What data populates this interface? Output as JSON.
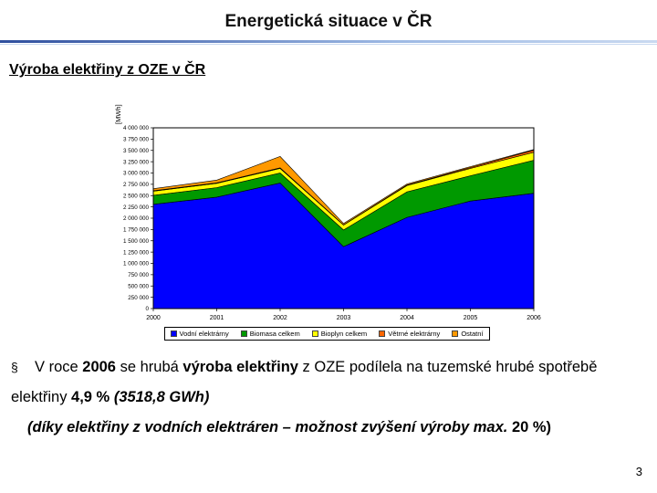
{
  "slide": {
    "title": "Energetická situace v ČR",
    "subtitle": "Výroba elektřiny z OZE v ČR",
    "page_number": "3",
    "accent_color": "#2F4F9E"
  },
  "chart_data": {
    "type": "area",
    "stacked": true,
    "title": "",
    "xlabel": "",
    "ylabel": "[MWh]",
    "categories": [
      "2000",
      "2001",
      "2002",
      "2003",
      "2004",
      "2005",
      "2006"
    ],
    "ylim": [
      0,
      4000000
    ],
    "ytick_step": 250000,
    "grid": false,
    "legend_position": "bottom",
    "plot_border_color": "#000000",
    "series": [
      {
        "name": "Vodní elektrárny",
        "color": "#0000FF",
        "values": [
          2308000,
          2467000,
          2780000,
          1370000,
          2019000,
          2380000,
          2551000
        ]
      },
      {
        "name": "Biomasa celkem",
        "color": "#009900",
        "values": [
          200000,
          210000,
          220000,
          370000,
          565000,
          560000,
          731000
        ]
      },
      {
        "name": "Bioplyn celkem",
        "color": "#FFFF00",
        "values": [
          90000,
          95000,
          100000,
          108000,
          139000,
          161000,
          176000
        ]
      },
      {
        "name": "Větrné elektrárny",
        "color": "#FF6600",
        "values": [
          10000,
          10000,
          15000,
          4000,
          10000,
          21000,
          49000
        ]
      },
      {
        "name": "Ostatní",
        "color": "#FF9900",
        "values": [
          45000,
          60000,
          250000,
          30000,
          25000,
          20000,
          12000
        ]
      }
    ]
  },
  "body": {
    "bullet": "§",
    "p1": {
      "a": "V roce ",
      "b": "2006",
      "c": " se hrubá ",
      "d": "výroba elektřiny",
      "e": " z OZE podílela na tuzemské hrubé spotřebě elektřiny ",
      "f": "4,9 %",
      "g": " ",
      "h": "(3518,8 GWh)"
    },
    "p2a": "(díky elektřiny z vodních elektráren – možnost zvýšení výroby max. ",
    "p2b": "20 %)"
  }
}
